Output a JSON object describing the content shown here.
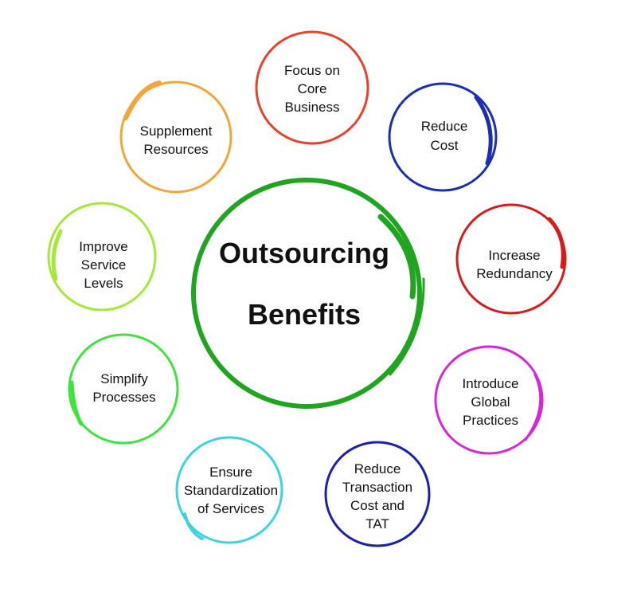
{
  "center": {
    "lines": [
      "Outsourcing",
      "Benefits"
    ],
    "color": "#1fa51f"
  },
  "benefits": [
    {
      "id": "focus",
      "lines": [
        "Focus on",
        "Core",
        "Business"
      ],
      "color": "#e8422e"
    },
    {
      "id": "reduce-cost",
      "lines": [
        "Reduce",
        "Cost"
      ],
      "color": "#1c2fb0"
    },
    {
      "id": "redundancy",
      "lines": [
        "Increase",
        "Redundancy"
      ],
      "color": "#d81a1a"
    },
    {
      "id": "global",
      "lines": [
        "Introduce",
        "Global",
        "Practices"
      ],
      "color": "#d626d6"
    },
    {
      "id": "transaction",
      "lines": [
        "Reduce",
        "Transaction",
        "Cost and",
        "TAT"
      ],
      "color": "#1c22a8"
    },
    {
      "id": "standardization",
      "lines": [
        "Ensure",
        "Standardization",
        "of Services"
      ],
      "color": "#3fd3dc"
    },
    {
      "id": "simplify",
      "lines": [
        "Simplify",
        "Processes"
      ],
      "color": "#3ee33e"
    },
    {
      "id": "service-levels",
      "lines": [
        "Improve",
        "Service",
        "Levels"
      ],
      "color": "#a6e83a"
    },
    {
      "id": "supplement",
      "lines": [
        "Supplement",
        "Resources"
      ],
      "color": "#f3a53a"
    }
  ]
}
